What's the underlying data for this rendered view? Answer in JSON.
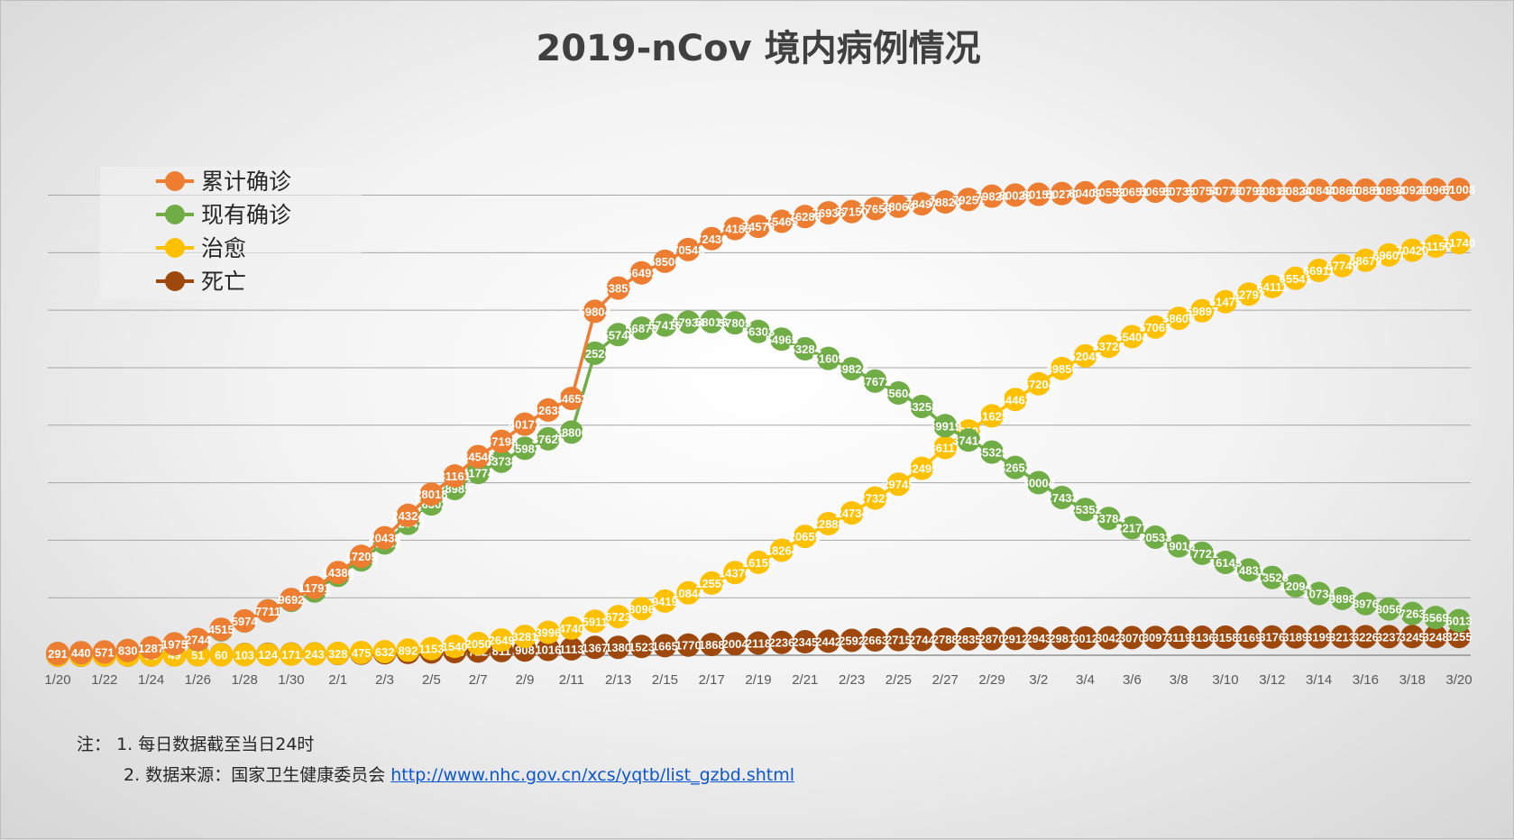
{
  "page": {
    "title": "2019-nCov 境内病例情况"
  },
  "colors": {
    "confirmed": "#ED7D31",
    "current": "#70AD47",
    "cured": "#FFC000",
    "deaths": "#9E480E",
    "grid": "#a6a6a6",
    "axis": "#7f7f7f"
  },
  "legend": [
    {
      "name": "累计确诊",
      "series": 0
    },
    {
      "name": "现有确诊",
      "series": 1
    },
    {
      "name": "治愈",
      "series": 2
    },
    {
      "name": "死亡",
      "series": 3
    }
  ],
  "notes": {
    "prefix": "注：",
    "line1": "1. 每日数据截至当日24时",
    "line2_text": "2. 数据来源：国家卫生健康委员会",
    "link": "http://www.nhc.gov.cn/xcs/yqtb/list_gzbd.shtml"
  },
  "chart_data": {
    "type": "line",
    "title": "2019-nCov 境内病例情况",
    "xlabel": "",
    "ylabel": "",
    "ylim": [
      0,
      84000
    ],
    "grid": true,
    "legend_position": "top-left",
    "x": [
      "1/20",
      "1/21",
      "1/22",
      "1/23",
      "1/24",
      "1/25",
      "1/26",
      "1/27",
      "1/28",
      "1/29",
      "1/30",
      "1/31",
      "2/1",
      "2/2",
      "2/3",
      "2/4",
      "2/5",
      "2/6",
      "2/7",
      "2/8",
      "2/9",
      "2/10",
      "2/11",
      "2/12",
      "2/13",
      "2/14",
      "2/15",
      "2/16",
      "2/17",
      "2/18",
      "2/19",
      "2/20",
      "2/21",
      "2/22",
      "2/23",
      "2/24",
      "2/25",
      "2/26",
      "2/27",
      "2/28",
      "2/29",
      "3/1",
      "3/2",
      "3/3",
      "3/4",
      "3/5",
      "3/6",
      "3/7",
      "3/8",
      "3/9",
      "3/10",
      "3/11",
      "3/12",
      "3/13",
      "3/14",
      "3/15",
      "3/16",
      "3/17",
      "3/18",
      "3/19",
      "3/20"
    ],
    "tick_labels": [
      "1/20",
      "1/22",
      "1/24",
      "1/26",
      "1/28",
      "1/30",
      "2/1",
      "2/3",
      "2/5",
      "2/7",
      "2/9",
      "2/11",
      "2/13",
      "2/15",
      "2/17",
      "2/19",
      "2/21",
      "2/23",
      "2/25",
      "2/27",
      "2/29",
      "3/2",
      "3/4",
      "3/6",
      "3/8",
      "3/10",
      "3/12",
      "3/14",
      "3/16",
      "3/18",
      "3/20"
    ],
    "series": [
      {
        "name": "累计确诊",
        "values": [
          291,
          440,
          571,
          830,
          1287,
          1975,
          2744,
          4515,
          5974,
          7711,
          9692,
          11791,
          14380,
          17205,
          20438,
          24324,
          28018,
          31161,
          34546,
          37198,
          40171,
          42638,
          44653,
          59804,
          63851,
          66492,
          68500,
          70548,
          72436,
          74185,
          74576,
          75465,
          76288,
          76936,
          77150,
          77658,
          78064,
          78497,
          78824,
          79251,
          79824,
          80026,
          80151,
          80270,
          80409,
          80552,
          80651,
          80695,
          80735,
          80754,
          80778,
          80793,
          80813,
          80824,
          80844,
          80860,
          80881,
          80894,
          80928,
          80967,
          81008
        ]
      },
      {
        "name": "现有确诊",
        "values": [
          291,
          440,
          571,
          830,
          1287,
          1975,
          2684,
          4409,
          5959,
          7717,
          9541,
          11171,
          13899,
          16579,
          19532,
          22942,
          26302,
          28985,
          31774,
          33738,
          35982,
          37626,
          38800,
          52526,
          55748,
          56873,
          57416,
          57934,
          58016,
          57805,
          56303,
          54965,
          53284,
          51609,
          49824,
          47672,
          45604,
          43258,
          39919,
          37414,
          35329,
          32652,
          30004,
          27433,
          25352,
          23784,
          22177,
          20533,
          19016,
          17721,
          16145,
          14831,
          13526,
          12094,
          10734,
          9898,
          8976,
          8056,
          7263,
          6569,
          6013
        ]
      },
      {
        "name": "治愈",
        "values": [
          25,
          28,
          28,
          34,
          38,
          49,
          51,
          60,
          103,
          124,
          171,
          243,
          328,
          475,
          632,
          892,
          1153,
          1540,
          2050,
          2649,
          3281,
          3996,
          4740,
          5911,
          6723,
          8096,
          9419,
          10844,
          12552,
          14376,
          16155,
          18264,
          20659,
          22888,
          24734,
          27323,
          29745,
          32495,
          36117,
          39002,
          41625,
          44462,
          47204,
          49856,
          52045,
          53726,
          55404,
          57065,
          58600,
          59897,
          61475,
          62793,
          64111,
          65541,
          66911,
          67749,
          68679,
          69601,
          70420,
          71150,
          71740
        ]
      },
      {
        "name": "死亡",
        "values": [
          6,
          9,
          17,
          25,
          41,
          56,
          80,
          106,
          132,
          170,
          213,
          259,
          304,
          361,
          425,
          490,
          563,
          636,
          722,
          811,
          908,
          1016,
          1113,
          1367,
          1380,
          1523,
          1665,
          1770,
          1868,
          2004,
          2118,
          2236,
          2345,
          2442,
          2592,
          2663,
          2715,
          2744,
          2788,
          2835,
          2870,
          2912,
          2943,
          2981,
          3012,
          3042,
          3070,
          3097,
          3119,
          3136,
          3158,
          3169,
          3176,
          3189,
          3199,
          3213,
          3226,
          3237,
          3245,
          3248,
          3255
        ]
      }
    ]
  }
}
